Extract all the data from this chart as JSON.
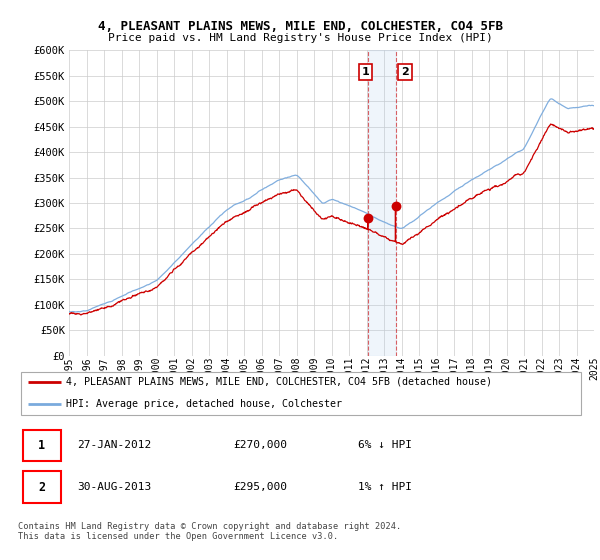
{
  "title1": "4, PLEASANT PLAINS MEWS, MILE END, COLCHESTER, CO4 5FB",
  "title2": "Price paid vs. HM Land Registry's House Price Index (HPI)",
  "ylabel_ticks": [
    "£0",
    "£50K",
    "£100K",
    "£150K",
    "£200K",
    "£250K",
    "£300K",
    "£350K",
    "£400K",
    "£450K",
    "£500K",
    "£550K",
    "£600K"
  ],
  "ytick_values": [
    0,
    50000,
    100000,
    150000,
    200000,
    250000,
    300000,
    350000,
    400000,
    450000,
    500000,
    550000,
    600000
  ],
  "year_start": 1995,
  "year_end": 2025,
  "t1_year": 2012.074,
  "t1_price": 270000,
  "t2_year": 2013.658,
  "t2_price": 295000,
  "legend_line1": "4, PLEASANT PLAINS MEWS, MILE END, COLCHESTER, CO4 5FB (detached house)",
  "legend_line2": "HPI: Average price, detached house, Colchester",
  "ann1_date": "27-JAN-2012",
  "ann1_price": "£270,000",
  "ann1_hpi": "6% ↓ HPI",
  "ann2_date": "30-AUG-2013",
  "ann2_price": "£295,000",
  "ann2_hpi": "1% ↑ HPI",
  "footnote": "Contains HM Land Registry data © Crown copyright and database right 2024.\nThis data is licensed under the Open Government Licence v3.0.",
  "hpi_color": "#7aaadd",
  "price_color": "#cc0000",
  "shading_color": "#ddeeff",
  "bg_color": "#ffffff",
  "grid_color": "#cccccc"
}
